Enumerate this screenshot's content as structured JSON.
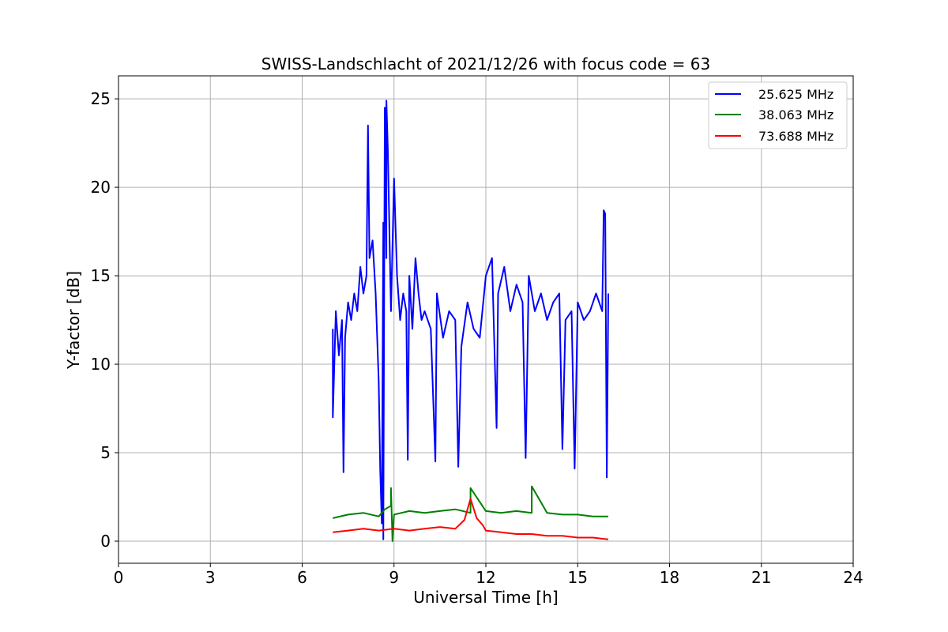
{
  "chart_data": {
    "type": "line",
    "title": "SWISS-Landschlacht of 2021/12/26 with focus code = 63",
    "xlabel": "Universal Time [h]",
    "ylabel": "Y-factor [dB]",
    "xlim": [
      0,
      24
    ],
    "ylim": [
      -1.25,
      26.3
    ],
    "xticks": [
      0,
      3,
      6,
      9,
      12,
      15,
      18,
      21,
      24
    ],
    "yticks": [
      0,
      5,
      10,
      15,
      20,
      25
    ],
    "xtick_labels": [
      "0",
      "3",
      "6",
      "9",
      "12",
      "15",
      "18",
      "21",
      "24"
    ],
    "ytick_labels": [
      "0",
      "5",
      "10",
      "15",
      "20",
      "25"
    ],
    "grid": true,
    "legend_position": "top-right",
    "series": [
      {
        "name": "25.625 MHz",
        "color": "#0000ff",
        "x": [
          7.0,
          7.1,
          7.2,
          7.3,
          7.4,
          7.5,
          7.6,
          7.7,
          7.8,
          7.9,
          8.0,
          8.1,
          8.15,
          8.2,
          8.3,
          8.4,
          8.5,
          8.55,
          8.6,
          8.65,
          8.7,
          8.75,
          8.8,
          8.9,
          9.0,
          9.1,
          9.2,
          9.3,
          9.4,
          9.5,
          9.6,
          9.7,
          9.8,
          9.9,
          10.0,
          10.2,
          10.4,
          10.6,
          10.8,
          11.0,
          11.2,
          11.4,
          11.6,
          11.8,
          12.0,
          12.2,
          12.4,
          12.6,
          12.8,
          13.0,
          13.2,
          13.4,
          13.6,
          13.8,
          14.0,
          14.2,
          14.4,
          14.6,
          14.8,
          15.0,
          15.2,
          15.4,
          15.6,
          15.8,
          15.9,
          16.0
        ],
        "y": [
          12.0,
          13.0,
          10.5,
          12.5,
          11.5,
          13.5,
          12.5,
          14.0,
          13.0,
          15.5,
          14.0,
          15.0,
          23.5,
          16.0,
          17.0,
          14.0,
          9.0,
          4.0,
          1.0,
          18.0,
          24.5,
          16.0,
          22.0,
          13.0,
          20.5,
          15.0,
          12.5,
          14.0,
          13.0,
          15.0,
          12.0,
          16.0,
          14.0,
          12.5,
          13.0,
          12.0,
          14.0,
          11.5,
          13.0,
          12.5,
          11.0,
          13.5,
          12.0,
          11.5,
          15.0,
          16.0,
          14.0,
          15.5,
          13.0,
          14.5,
          13.5,
          15.0,
          13.0,
          14.0,
          12.5,
          13.5,
          14.0,
          12.5,
          13.0,
          13.5,
          12.5,
          13.0,
          14.0,
          13.0,
          18.5,
          14.0
        ],
        "notable_points": [
          [
            7.0,
            7.0
          ],
          [
            7.35,
            3.9
          ],
          [
            8.65,
            0.1
          ],
          [
            8.75,
            24.9
          ],
          [
            9.45,
            4.6
          ],
          [
            10.35,
            4.5
          ],
          [
            11.1,
            4.2
          ],
          [
            12.35,
            6.4
          ],
          [
            13.3,
            4.7
          ],
          [
            14.5,
            5.2
          ],
          [
            14.9,
            4.1
          ],
          [
            15.85,
            18.7
          ],
          [
            15.95,
            3.6
          ]
        ]
      },
      {
        "name": "38.063 MHz",
        "color": "#008000",
        "x": [
          7.0,
          7.5,
          8.0,
          8.5,
          8.7,
          8.9,
          9.0,
          9.5,
          10.0,
          10.5,
          11.0,
          11.5,
          12.0,
          12.5,
          13.0,
          13.5,
          14.0,
          14.5,
          15.0,
          15.5,
          16.0
        ],
        "y": [
          1.3,
          1.5,
          1.6,
          1.4,
          1.8,
          2.0,
          1.5,
          1.7,
          1.6,
          1.7,
          1.8,
          1.6,
          1.7,
          1.6,
          1.7,
          1.6,
          1.6,
          1.5,
          1.5,
          1.4,
          1.4
        ],
        "notable_points": [
          [
            8.9,
            3.0
          ],
          [
            8.95,
            0.0
          ],
          [
            11.5,
            3.0
          ],
          [
            13.5,
            3.1
          ]
        ]
      },
      {
        "name": "73.688 MHz",
        "color": "#ff0000",
        "x": [
          7.0,
          7.5,
          8.0,
          8.5,
          9.0,
          9.5,
          10.0,
          10.5,
          11.0,
          11.3,
          11.5,
          11.7,
          11.9,
          12.0,
          12.5,
          13.0,
          13.5,
          14.0,
          14.5,
          15.0,
          15.5,
          16.0
        ],
        "y": [
          0.5,
          0.6,
          0.7,
          0.6,
          0.7,
          0.6,
          0.7,
          0.8,
          0.7,
          1.2,
          2.4,
          1.3,
          0.9,
          0.6,
          0.5,
          0.4,
          0.4,
          0.3,
          0.3,
          0.2,
          0.2,
          0.1
        ]
      }
    ]
  }
}
